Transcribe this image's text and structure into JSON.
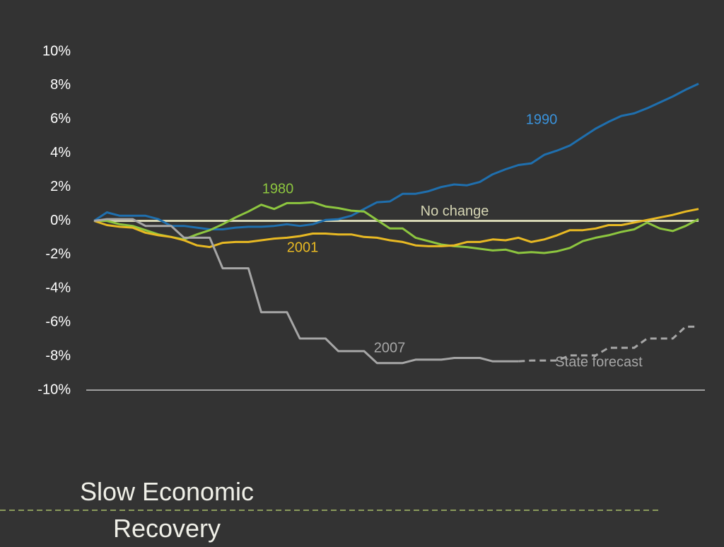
{
  "chart_data": {
    "type": "line",
    "title": "Slow Economic Recovery",
    "ylim": [
      -10,
      10
    ],
    "yticks": [
      {
        "value": 10,
        "label": "10%"
      },
      {
        "value": 8,
        "label": "8%"
      },
      {
        "value": 6,
        "label": "6%"
      },
      {
        "value": 4,
        "label": "4%"
      },
      {
        "value": 2,
        "label": "2%"
      },
      {
        "value": 0,
        "label": "0%"
      },
      {
        "value": -2,
        "label": "-2%"
      },
      {
        "value": -4,
        "label": "-4%"
      },
      {
        "value": -6,
        "label": "-6%"
      },
      {
        "value": -8,
        "label": "-8%"
      },
      {
        "value": -10,
        "label": "-10%"
      }
    ],
    "reference_line": {
      "value": 0,
      "label": "No change",
      "color": "#d6d6b4"
    },
    "series": [
      {
        "name": "1990",
        "color": "#1f6fae",
        "values": [
          0,
          0.5,
          0.3,
          0.3,
          0.3,
          0.1,
          -0.3,
          -0.3,
          -0.4,
          -0.5,
          -0.5,
          -0.4,
          -0.35,
          -0.35,
          -0.3,
          -0.2,
          -0.3,
          -0.2,
          0.05,
          0.1,
          0.3,
          0.7,
          1.1,
          1.15,
          1.6,
          1.6,
          1.75,
          2.0,
          2.15,
          2.1,
          2.3,
          2.75,
          3.05,
          3.3,
          3.4,
          3.9,
          4.15,
          4.45,
          4.95,
          5.45,
          5.85,
          6.2,
          6.35,
          6.65,
          7.0,
          7.35,
          7.75,
          8.1
        ]
      },
      {
        "name": "1980",
        "color": "#8dc63f",
        "values": [
          0,
          0.0,
          -0.2,
          -0.3,
          -0.55,
          -0.8,
          -0.95,
          -1.1,
          -0.8,
          -0.55,
          -0.2,
          0.2,
          0.55,
          0.95,
          0.7,
          1.05,
          1.05,
          1.1,
          0.85,
          0.75,
          0.6,
          0.55,
          0.05,
          -0.45,
          -0.45,
          -1.0,
          -1.2,
          -1.4,
          -1.5,
          -1.55,
          -1.65,
          -1.75,
          -1.7,
          -1.9,
          -1.85,
          -1.9,
          -1.8,
          -1.6,
          -1.2,
          -1.0,
          -0.85,
          -0.65,
          -0.5,
          -0.1,
          -0.45,
          -0.6,
          -0.3,
          0.1
        ]
      },
      {
        "name": "2001",
        "color": "#e8b923",
        "values": [
          0,
          -0.25,
          -0.35,
          -0.4,
          -0.7,
          -0.85,
          -0.95,
          -1.15,
          -1.45,
          -1.55,
          -1.3,
          -1.25,
          -1.25,
          -1.15,
          -1.05,
          -1.0,
          -0.9,
          -0.75,
          -0.75,
          -0.8,
          -0.8,
          -0.95,
          -1.0,
          -1.15,
          -1.25,
          -1.45,
          -1.5,
          -1.5,
          -1.45,
          -1.25,
          -1.25,
          -1.1,
          -1.15,
          -1.0,
          -1.25,
          -1.1,
          -0.85,
          -0.55,
          -0.55,
          -0.45,
          -0.25,
          -0.25,
          -0.1,
          0.05,
          0.2,
          0.35,
          0.55,
          0.7
        ]
      },
      {
        "name": "2007",
        "color": "#a6a6a6",
        "values": [
          0,
          0.1,
          0.1,
          0.1,
          -0.3,
          -0.3,
          -0.3,
          -1.0,
          -1.0,
          -1.0,
          -2.8,
          -2.8,
          -2.8,
          -5.4,
          -5.4,
          -5.4,
          -6.95,
          -6.95,
          -6.95,
          -7.7,
          -7.7,
          -7.7,
          -8.4,
          -8.4,
          -8.4,
          -8.2,
          -8.2,
          -8.2,
          -8.1,
          -8.1,
          -8.1,
          -8.3,
          -8.3,
          -8.3,
          null,
          null,
          null,
          null,
          null,
          null,
          null,
          null,
          null,
          null,
          null,
          null,
          null,
          null
        ]
      },
      {
        "name": "State forecast",
        "color": "#a6a6a6",
        "dashed": true,
        "values": [
          null,
          null,
          null,
          null,
          null,
          null,
          null,
          null,
          null,
          null,
          null,
          null,
          null,
          null,
          null,
          null,
          null,
          null,
          null,
          null,
          null,
          null,
          null,
          null,
          null,
          null,
          null,
          null,
          null,
          null,
          null,
          null,
          null,
          -8.3,
          -8.25,
          -8.25,
          -8.25,
          -7.95,
          -7.95,
          -7.95,
          -7.5,
          -7.5,
          -7.5,
          -6.95,
          -6.95,
          -6.95,
          -6.25,
          -6.25
        ]
      }
    ]
  }
}
